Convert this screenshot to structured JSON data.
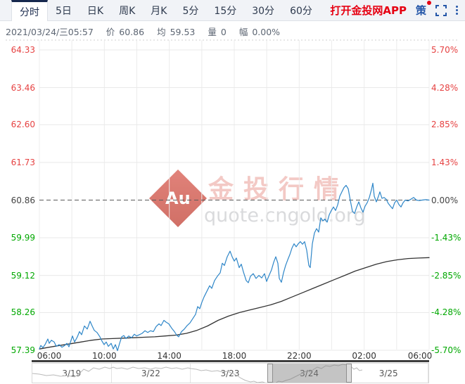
{
  "tab_bar": {
    "tabs": [
      {
        "label": "分时",
        "active": true
      },
      {
        "label": "5日",
        "active": false
      },
      {
        "label": "日K",
        "active": false
      },
      {
        "label": "周K",
        "active": false
      },
      {
        "label": "月K",
        "active": false
      },
      {
        "label": "5分",
        "active": false
      },
      {
        "label": "15分",
        "active": false
      },
      {
        "label": "30分",
        "active": false
      },
      {
        "label": "60分",
        "active": false
      }
    ],
    "app_link": "打开金投网APP",
    "strategy_label": "策"
  },
  "info_bar": {
    "datetime": "2021/03/24/三05:57",
    "price_label": "价",
    "price": "60.86",
    "avg_label": "均",
    "avg": "59.53",
    "volume_label": "量",
    "volume": "0",
    "change_label": "幅",
    "change": "0.00%"
  },
  "watermark": {
    "logo": "Au",
    "brand": "金投行情",
    "domain": "quote.cngold.org"
  },
  "navigator": {
    "dates": [
      "3/19",
      "3/22",
      "3/23",
      "3/24",
      "3/25"
    ],
    "selected_date": "3/24",
    "spark": [
      [
        0,
        14
      ],
      [
        10,
        15
      ],
      [
        20,
        17
      ],
      [
        30,
        16
      ],
      [
        40,
        18
      ],
      [
        50,
        17
      ],
      [
        60,
        19
      ],
      [
        67,
        14
      ],
      [
        73,
        8
      ],
      [
        80,
        11
      ],
      [
        87,
        6
      ],
      [
        95,
        8
      ],
      [
        103,
        5
      ],
      [
        110,
        7
      ],
      [
        115,
        5
      ],
      [
        120,
        7
      ],
      [
        127,
        6
      ],
      [
        135,
        8
      ],
      [
        143,
        5
      ],
      [
        151,
        7
      ],
      [
        160,
        6
      ],
      [
        168,
        8
      ],
      [
        175,
        6
      ],
      [
        183,
        7
      ],
      [
        190,
        5
      ],
      [
        198,
        7
      ],
      [
        205,
        6
      ],
      [
        213,
        8
      ],
      [
        221,
        6
      ],
      [
        225,
        7
      ],
      [
        233,
        8
      ],
      [
        240,
        10
      ],
      [
        247,
        9
      ],
      [
        255,
        11
      ],
      [
        263,
        10
      ],
      [
        270,
        12
      ],
      [
        277,
        11
      ],
      [
        285,
        14
      ],
      [
        291,
        17
      ],
      [
        297,
        21
      ],
      [
        303,
        24
      ],
      [
        310,
        26
      ],
      [
        315,
        25
      ],
      [
        320,
        27
      ],
      [
        327,
        26
      ],
      [
        333,
        28
      ],
      [
        340,
        26
      ],
      [
        345,
        28
      ],
      [
        350,
        25
      ],
      [
        355,
        26
      ],
      [
        360,
        24
      ],
      [
        367,
        22
      ],
      [
        373,
        19
      ],
      [
        379,
        16
      ],
      [
        385,
        13
      ],
      [
        391,
        10
      ],
      [
        395,
        12
      ],
      [
        400,
        8
      ],
      [
        405,
        5
      ],
      [
        411,
        7
      ],
      [
        417,
        3
      ],
      [
        423,
        4
      ],
      [
        429,
        2
      ],
      [
        435,
        3
      ],
      [
        441,
        1
      ],
      [
        447,
        2
      ],
      [
        452,
        3
      ],
      [
        457,
        8
      ],
      [
        461,
        6
      ],
      [
        465,
        10
      ],
      [
        469,
        9
      ]
    ]
  },
  "chart_data": {
    "type": "line",
    "title": "黄金分时走势 (intraday line chart)",
    "ylim": [
      57.39,
      64.33
    ],
    "baseline_value": 60.86,
    "grid_values": [
      64.33,
      63.46,
      62.6,
      61.73,
      60.86,
      59.99,
      59.12,
      58.26,
      57.39
    ],
    "left_axis": [
      {
        "text": "64.33",
        "color": "#e64242"
      },
      {
        "text": "63.46",
        "color": "#e64242"
      },
      {
        "text": "62.60",
        "color": "#e64242"
      },
      {
        "text": "61.73",
        "color": "#e64242"
      },
      {
        "text": "60.86",
        "color": "#444444"
      },
      {
        "text": "59.99",
        "color": "#00a800"
      },
      {
        "text": "59.12",
        "color": "#00a800"
      },
      {
        "text": "58.26",
        "color": "#00a800"
      },
      {
        "text": "57.39",
        "color": "#00a800"
      }
    ],
    "right_axis": [
      {
        "text": "5.70%",
        "color": "#e64242"
      },
      {
        "text": "4.28%",
        "color": "#e64242"
      },
      {
        "text": "2.85%",
        "color": "#e64242"
      },
      {
        "text": "1.43%",
        "color": "#e64242"
      },
      {
        "text": "0.00%",
        "color": "#444444"
      },
      {
        "text": "-1.43%",
        "color": "#00a800"
      },
      {
        "text": "-2.85%",
        "color": "#00a800"
      },
      {
        "text": "-4.28%",
        "color": "#00a800"
      },
      {
        "text": "-5.70%",
        "color": "#00a800"
      }
    ],
    "x_axis": [
      "06:00",
      "10:00",
      "14:00",
      "18:00",
      "22:00",
      "02:00",
      "06:00"
    ],
    "series": [
      {
        "name": "average",
        "color": "#333333",
        "width": 1.3,
        "points": [
          [
            0,
            57.42
          ],
          [
            14,
            57.46
          ],
          [
            29,
            57.5
          ],
          [
            44,
            57.54
          ],
          [
            59,
            57.58
          ],
          [
            74,
            57.62
          ],
          [
            89,
            57.65
          ],
          [
            104,
            57.66
          ],
          [
            119,
            57.67
          ],
          [
            134,
            57.68
          ],
          [
            149,
            57.69
          ],
          [
            164,
            57.7
          ],
          [
            179,
            57.72
          ],
          [
            194,
            57.74
          ],
          [
            209,
            57.78
          ],
          [
            224,
            57.85
          ],
          [
            239,
            57.95
          ],
          [
            254,
            58.08
          ],
          [
            269,
            58.18
          ],
          [
            284,
            58.26
          ],
          [
            299,
            58.32
          ],
          [
            314,
            58.38
          ],
          [
            329,
            58.44
          ],
          [
            344,
            58.52
          ],
          [
            359,
            58.62
          ],
          [
            374,
            58.72
          ],
          [
            389,
            58.82
          ],
          [
            404,
            58.92
          ],
          [
            419,
            59.02
          ],
          [
            434,
            59.12
          ],
          [
            449,
            59.22
          ],
          [
            464,
            59.3
          ],
          [
            479,
            59.38
          ],
          [
            494,
            59.44
          ],
          [
            509,
            59.48
          ],
          [
            524,
            59.51
          ],
          [
            539,
            59.52
          ],
          [
            554,
            59.53
          ]
        ]
      },
      {
        "name": "price",
        "color": "#2e86c8",
        "width": 1.2,
        "points": [
          [
            0,
            57.42
          ],
          [
            2,
            57.5
          ],
          [
            5,
            57.45
          ],
          [
            8,
            57.52
          ],
          [
            12,
            57.65
          ],
          [
            14,
            57.55
          ],
          [
            17,
            57.62
          ],
          [
            21,
            57.58
          ],
          [
            24,
            57.48
          ],
          [
            28,
            57.52
          ],
          [
            32,
            57.46
          ],
          [
            36,
            57.5
          ],
          [
            39,
            57.55
          ],
          [
            42,
            57.47
          ],
          [
            47,
            57.72
          ],
          [
            50,
            57.58
          ],
          [
            54,
            57.7
          ],
          [
            57,
            57.82
          ],
          [
            60,
            57.75
          ],
          [
            64,
            57.95
          ],
          [
            68,
            57.88
          ],
          [
            72,
            58.06
          ],
          [
            75,
            57.95
          ],
          [
            78,
            57.85
          ],
          [
            82,
            57.8
          ],
          [
            86,
            57.7
          ],
          [
            89,
            57.6
          ],
          [
            92,
            57.52
          ],
          [
            95,
            57.58
          ],
          [
            98,
            57.48
          ],
          [
            102,
            57.55
          ],
          [
            105,
            57.42
          ],
          [
            108,
            57.52
          ],
          [
            111,
            57.38
          ],
          [
            114,
            57.55
          ],
          [
            117,
            57.7
          ],
          [
            120,
            57.73
          ],
          [
            123,
            57.66
          ],
          [
            127,
            57.72
          ],
          [
            131,
            57.68
          ],
          [
            135,
            57.76
          ],
          [
            138,
            57.72
          ],
          [
            142,
            57.75
          ],
          [
            146,
            57.78
          ],
          [
            150,
            57.84
          ],
          [
            154,
            57.8
          ],
          [
            158,
            57.84
          ],
          [
            162,
            57.82
          ],
          [
            166,
            57.94
          ],
          [
            170,
            58.0
          ],
          [
            173,
            57.96
          ],
          [
            177,
            58.08
          ],
          [
            180,
            58.04
          ],
          [
            184,
            58.0
          ],
          [
            188,
            57.9
          ],
          [
            192,
            57.82
          ],
          [
            195,
            57.74
          ],
          [
            198,
            57.7
          ],
          [
            202,
            57.82
          ],
          [
            206,
            57.88
          ],
          [
            210,
            57.96
          ],
          [
            214,
            58.02
          ],
          [
            218,
            58.12
          ],
          [
            222,
            58.22
          ],
          [
            225,
            58.4
          ],
          [
            228,
            58.35
          ],
          [
            231,
            58.5
          ],
          [
            234,
            58.62
          ],
          [
            238,
            58.75
          ],
          [
            242,
            58.88
          ],
          [
            245,
            58.82
          ],
          [
            249,
            59.0
          ],
          [
            253,
            59.1
          ],
          [
            257,
            59.18
          ],
          [
            260,
            59.4
          ],
          [
            263,
            59.35
          ],
          [
            267,
            59.55
          ],
          [
            271,
            59.68
          ],
          [
            274,
            59.55
          ],
          [
            277,
            59.45
          ],
          [
            280,
            59.52
          ],
          [
            284,
            59.3
          ],
          [
            287,
            59.38
          ],
          [
            290,
            59.2
          ],
          [
            294,
            59.0
          ],
          [
            297,
            58.95
          ],
          [
            300,
            59.1
          ],
          [
            304,
            59.16
          ],
          [
            308,
            59.05
          ],
          [
            312,
            59.12
          ],
          [
            316,
            59.06
          ],
          [
            320,
            59.16
          ],
          [
            323,
            58.98
          ],
          [
            326,
            59.1
          ],
          [
            330,
            59.25
          ],
          [
            333,
            59.42
          ],
          [
            336,
            59.55
          ],
          [
            339,
            59.4
          ],
          [
            341,
            59.05
          ],
          [
            344,
            58.96
          ],
          [
            347,
            59.18
          ],
          [
            350,
            59.35
          ],
          [
            353,
            59.48
          ],
          [
            356,
            59.6
          ],
          [
            359,
            59.75
          ],
          [
            362,
            59.85
          ],
          [
            365,
            59.78
          ],
          [
            368,
            59.85
          ],
          [
            371,
            59.9
          ],
          [
            374,
            59.84
          ],
          [
            377,
            59.9
          ],
          [
            380,
            59.7
          ],
          [
            383,
            59.35
          ],
          [
            385,
            59.3
          ],
          [
            388,
            59.85
          ],
          [
            391,
            60.1
          ],
          [
            394,
            60.2
          ],
          [
            397,
            60.12
          ],
          [
            400,
            60.45
          ],
          [
            403,
            60.38
          ],
          [
            406,
            60.42
          ],
          [
            409,
            60.35
          ],
          [
            412,
            60.52
          ],
          [
            415,
            60.62
          ],
          [
            418,
            60.7
          ],
          [
            421,
            60.62
          ],
          [
            424,
            60.75
          ],
          [
            427,
            60.95
          ],
          [
            430,
            61.05
          ],
          [
            433,
            61.15
          ],
          [
            436,
            61.2
          ],
          [
            439,
            61.12
          ],
          [
            442,
            60.85
          ],
          [
            445,
            60.6
          ],
          [
            448,
            60.55
          ],
          [
            451,
            60.7
          ],
          [
            454,
            60.82
          ],
          [
            457,
            60.68
          ],
          [
            460,
            60.58
          ],
          [
            463,
            60.72
          ],
          [
            466,
            60.8
          ],
          [
            469,
            60.92
          ],
          [
            472,
            61.1
          ],
          [
            474,
            61.25
          ],
          [
            476,
            60.95
          ],
          [
            479,
            60.82
          ],
          [
            482,
            60.95
          ],
          [
            484,
            61.05
          ],
          [
            487,
            60.9
          ],
          [
            490,
            60.92
          ],
          [
            493,
            60.88
          ],
          [
            496,
            60.78
          ],
          [
            499,
            60.72
          ],
          [
            502,
            60.66
          ],
          [
            505,
            60.8
          ],
          [
            508,
            60.86
          ],
          [
            511,
            60.76
          ],
          [
            514,
            60.7
          ],
          [
            517,
            60.8
          ],
          [
            520,
            60.86
          ],
          [
            524,
            60.84
          ],
          [
            528,
            60.88
          ],
          [
            532,
            60.92
          ],
          [
            536,
            60.86
          ],
          [
            540,
            60.85
          ],
          [
            544,
            60.86
          ],
          [
            549,
            60.87
          ],
          [
            554,
            60.86
          ]
        ]
      }
    ]
  }
}
